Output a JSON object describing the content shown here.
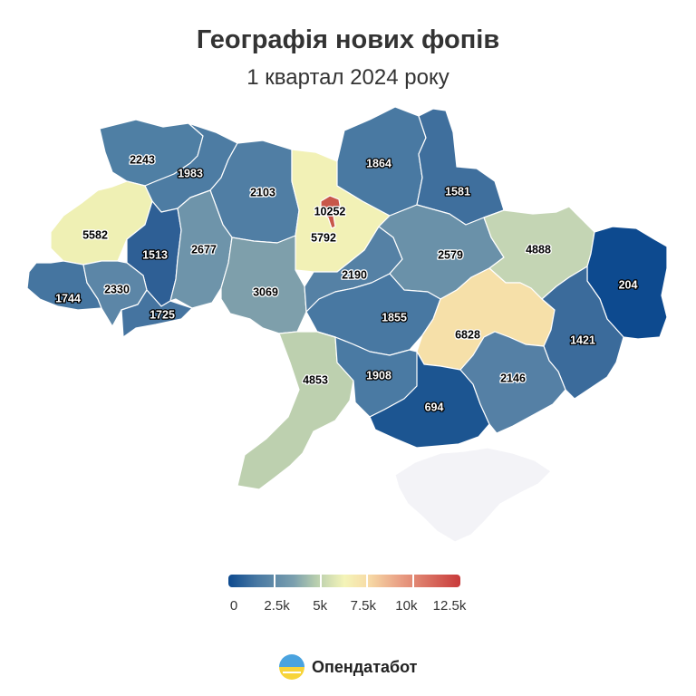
{
  "header": {
    "title": "Географія нових фопів",
    "subtitle": "1 квартал 2024 року"
  },
  "regions": [
    {
      "id": "volyn",
      "value": 2243,
      "color": "#4f7fa4"
    },
    {
      "id": "rivne",
      "value": 1983,
      "color": "#4d7ca3"
    },
    {
      "id": "zhytomyr",
      "value": 2103,
      "color": "#507ea4"
    },
    {
      "id": "kyiv-oblast",
      "value": 5792,
      "color": "#f2f1b6"
    },
    {
      "id": "kyiv-city",
      "value": 10252,
      "color": "#c8574a"
    },
    {
      "id": "chernihiv",
      "value": 1864,
      "color": "#4979a2"
    },
    {
      "id": "sumy",
      "value": 1581,
      "color": "#3f6f9d"
    },
    {
      "id": "lviv",
      "value": 5582,
      "color": "#eff0b4"
    },
    {
      "id": "ternopil",
      "value": 1513,
      "color": "#2e5f95"
    },
    {
      "id": "khmelnytskyi",
      "value": 2677,
      "color": "#6e94aa"
    },
    {
      "id": "vinnytsia",
      "value": 3069,
      "color": "#7e9fab"
    },
    {
      "id": "cherkasy",
      "value": 2190,
      "color": "#5581a5"
    },
    {
      "id": "poltava",
      "value": 2579,
      "color": "#6a91a9"
    },
    {
      "id": "kharkiv",
      "value": 4888,
      "color": "#c4d5b4"
    },
    {
      "id": "luhansk",
      "value": 204,
      "color": "#0d4a8f"
    },
    {
      "id": "zakarpattia",
      "value": 1744,
      "color": "#4575a0"
    },
    {
      "id": "ivano-frankivsk",
      "value": 2330,
      "color": "#5c86a7"
    },
    {
      "id": "chernivtsi",
      "value": 1725,
      "color": "#4574a0"
    },
    {
      "id": "kirovohrad",
      "value": 1855,
      "color": "#4878a2"
    },
    {
      "id": "dnipropetrovsk",
      "value": 6828,
      "color": "#f6e0a9"
    },
    {
      "id": "donetsk",
      "value": 1421,
      "color": "#3b6b9b"
    },
    {
      "id": "odesa",
      "value": 4853,
      "color": "#bdd0af"
    },
    {
      "id": "mykolaiv",
      "value": 1908,
      "color": "#4a7aa3"
    },
    {
      "id": "kherson",
      "value": 694,
      "color": "#1c5591"
    },
    {
      "id": "zaporizhzhia",
      "value": 2146,
      "color": "#5580a5"
    },
    {
      "id": "crimea",
      "value": null,
      "color": "#f3f3f7"
    }
  ],
  "legend": {
    "ticks": [
      {
        "label": "0",
        "value": 0
      },
      {
        "label": "2.5k",
        "value": 2500
      },
      {
        "label": "5k",
        "value": 5000
      },
      {
        "label": "7.5k",
        "value": 7500
      },
      {
        "label": "10k",
        "value": 10000
      },
      {
        "label": "12.5k",
        "value": 12500
      }
    ]
  },
  "brand": {
    "name": "Опендатабот",
    "icon": "opendatabot-logo-icon"
  }
}
